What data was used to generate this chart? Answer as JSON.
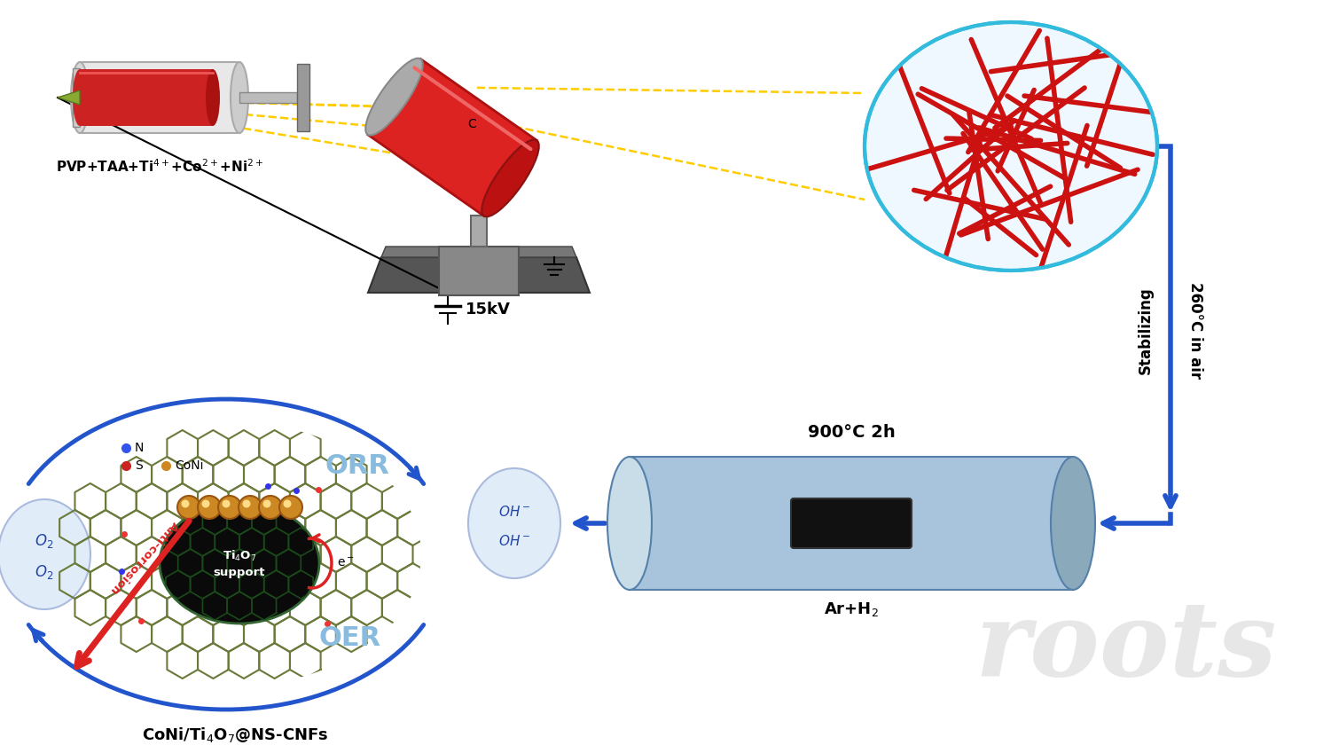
{
  "bg_color": "#ffffff",
  "syringe_label": "PVP+TAA+Ti$^{4+}$+Co$^{2+}$+Ni$^{2+}$",
  "voltage_label": "15kV",
  "temp1_label": "260°C in air",
  "stabilizing_label": "Stabilizing",
  "temp2_label": "900°C 2h",
  "gas_label": "Ar+H$_2$",
  "orr_label": "ORR",
  "oer_label": "OER",
  "tio7_label": "Ti$_4$O$_7$\nsupport",
  "anticorrosion_label": "Anti-corrosion",
  "product_label": "CoNi/Ti$_4$O$_7$@NS-CNFs",
  "o2_label": "O$_2$\nO$_2$",
  "oh_label": "OH$^-$\nOH$^-$",
  "eminus_label": "e$^-$",
  "legend_n": "N",
  "legend_s": "S",
  "legend_coni": "CoNi",
  "arrow_color": "#2255cc",
  "arrow_color2": "#3366cc"
}
